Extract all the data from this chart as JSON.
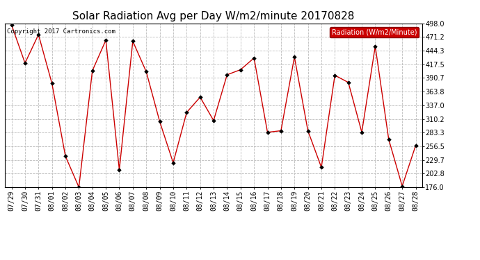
{
  "title": "Solar Radiation Avg per Day W/m2/minute 20170828",
  "copyright": "Copyright 2017 Cartronics.com",
  "legend_label": "Radiation (W/m2/Minute)",
  "ylim": [
    176.0,
    498.0
  ],
  "yticks": [
    176.0,
    202.8,
    229.7,
    256.5,
    283.3,
    310.2,
    337.0,
    363.8,
    390.7,
    417.5,
    444.3,
    471.2,
    498.0
  ],
  "dates": [
    "07/29",
    "07/30",
    "07/31",
    "08/01",
    "08/02",
    "08/03",
    "08/04",
    "08/05",
    "08/06",
    "08/07",
    "08/08",
    "08/09",
    "08/10",
    "08/11",
    "08/12",
    "08/13",
    "08/14",
    "08/15",
    "08/16",
    "08/17",
    "08/18",
    "08/19",
    "08/20",
    "08/21",
    "08/22",
    "08/23",
    "08/24",
    "08/25",
    "08/26",
    "08/27",
    "08/28"
  ],
  "values": [
    495.0,
    420.0,
    476.0,
    380.0,
    237.0,
    176.0,
    405.0,
    465.0,
    210.0,
    463.0,
    403.0,
    305.0,
    224.0,
    323.0,
    353.0,
    307.0,
    397.0,
    407.0,
    430.0,
    284.0,
    287.0,
    432.0,
    287.0,
    215.0,
    396.0,
    382.0,
    284.0,
    453.0,
    270.0,
    178.0,
    258.0
  ],
  "line_color": "#cc0000",
  "marker_color": "#000000",
  "bg_color": "#ffffff",
  "grid_color": "#bbbbbb",
  "title_fontsize": 11,
  "tick_fontsize": 7,
  "copyright_fontsize": 6.5,
  "legend_bg": "#cc0000",
  "legend_text_color": "#ffffff",
  "legend_fontsize": 7
}
